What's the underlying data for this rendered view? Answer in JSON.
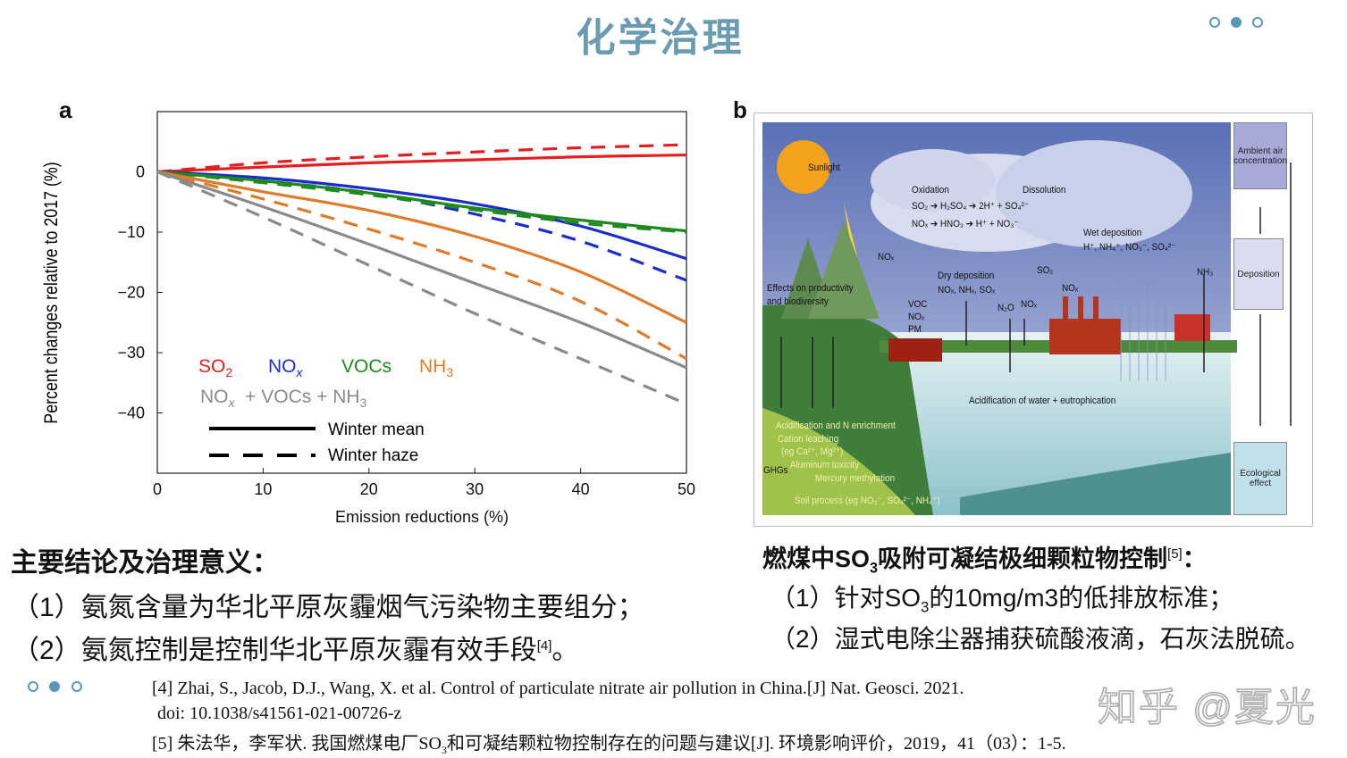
{
  "slide": {
    "title": "化学治理",
    "pager_dots": [
      false,
      true,
      false
    ],
    "footer_dots": [
      false,
      true,
      false
    ]
  },
  "panel_a": {
    "label": "a"
  },
  "panel_b": {
    "label": "b",
    "labels": {
      "sunlight": "Sunlight",
      "oxidation": "Oxidation",
      "dissolution": "Dissolution",
      "so2_reaction": "SO₂ ➔ H₂SO₄ ➔ 2H⁺ + SO₄²⁻",
      "nox_reaction": "NOₓ ➔ HNO₃ ➔ H⁺ + NO₃⁻",
      "wet_deposition": "Wet deposition",
      "wet_species": "H⁺, NH₄⁺, NO₃⁻, SO₄²⁻",
      "nox_lightning": "NOₓ",
      "dry_deposition": "Dry deposition",
      "dry_species": "NOₓ, NHₓ, SOₓ",
      "so2_stack": "SO₂",
      "nox_stack": "NOₓ",
      "nh3": "NH₃",
      "effects": "Effects on productivity",
      "effects2": "and biodiversity",
      "voc": "VOC",
      "voc_nox": "NOₓ",
      "voc_pm": "PM",
      "n2o": "N₂O",
      "nox_up": "NOₓ",
      "acid_water": "Acidification of water + eutrophication",
      "acid_n": "Acidification and N enrichment",
      "cation": "Cation leaching",
      "cation2": "(eg Ca²⁺, Mg²⁺)",
      "aluminum": "Aluminum toxicity",
      "mercury": "Mercury methylation",
      "ghgs": "GHGs",
      "soil": "Soil process (eg NO₃⁻, SO₄²⁻, NH₄⁺)"
    },
    "flow_boxes": [
      "Ambient air concentration",
      "Deposition",
      "Ecological effect"
    ]
  },
  "chart_data": {
    "type": "line",
    "xlabel": "Emission reductions (%)",
    "ylabel": "Percent changes relative to 2017 (%)",
    "xlim": [
      0,
      50
    ],
    "ylim": [
      -50,
      10
    ],
    "xticks": [
      0,
      10,
      20,
      30,
      40,
      50
    ],
    "yticks": [
      0,
      -10,
      -20,
      -30,
      -40
    ],
    "ytick_labels": [
      "0",
      "−10",
      "−20",
      "−30",
      "−40"
    ],
    "grid": false,
    "x": [
      0,
      10,
      20,
      30,
      40,
      50
    ],
    "legend_species": [
      {
        "base": "SO",
        "sub": "2",
        "color": "#e2201f"
      },
      {
        "base": "NO",
        "sub": "x",
        "color": "#1a2dc8"
      },
      {
        "base": "VOCs",
        "sub": "",
        "color": "#1e8a1e"
      },
      {
        "base": "NH",
        "sub": "3",
        "color": "#e07b2b"
      }
    ],
    "legend_combined": {
      "p1": "NO",
      "s1": "x",
      "p2": "  + VOCs + NH",
      "s2": "3",
      "color": "#8a8a8a"
    },
    "legend_styles": [
      {
        "label": "Winter mean",
        "dash": false
      },
      {
        "label": "Winter haze",
        "dash": true
      }
    ],
    "legend_placement": "bottom-left",
    "series": [
      {
        "species": "SO2",
        "style": "Winter mean",
        "color": "#e2201f",
        "values": [
          0,
          0.8,
          1.5,
          2.0,
          2.5,
          2.8
        ]
      },
      {
        "species": "SO2",
        "style": "Winter haze",
        "color": "#e2201f",
        "values": [
          0,
          1.5,
          2.5,
          3.3,
          4.0,
          4.5
        ]
      },
      {
        "species": "NOx",
        "style": "Winter mean",
        "color": "#1a2dc8",
        "values": [
          0,
          -1.0,
          -2.8,
          -5.3,
          -9.0,
          -14.4
        ]
      },
      {
        "species": "NOx",
        "style": "Winter haze",
        "color": "#1a2dc8",
        "values": [
          0,
          -1.5,
          -3.5,
          -7.0,
          -11.5,
          -18.0
        ]
      },
      {
        "species": "VOCs",
        "style": "Winter mean",
        "color": "#1e8a1e",
        "values": [
          0,
          -1.5,
          -3.5,
          -6.0,
          -8.0,
          -9.8
        ]
      },
      {
        "species": "VOCs",
        "style": "Winter haze",
        "color": "#1e8a1e",
        "values": [
          0,
          -1.8,
          -3.8,
          -6.3,
          -8.5,
          -10.0
        ]
      },
      {
        "species": "NH3",
        "style": "Winter mean",
        "color": "#e07b2b",
        "values": [
          0,
          -3.3,
          -6.4,
          -10.7,
          -16.6,
          -25.0
        ]
      },
      {
        "species": "NH3",
        "style": "Winter haze",
        "color": "#e07b2b",
        "values": [
          0,
          -4.5,
          -9.5,
          -15.0,
          -21.5,
          -31.0
        ]
      },
      {
        "species": "NOx + VOCs + NH3",
        "style": "Winter mean",
        "color": "#8a8a8a",
        "values": [
          0,
          -5.8,
          -12.0,
          -18.5,
          -25.0,
          -32.5
        ]
      },
      {
        "species": "NOx + VOCs + NH3",
        "style": "Winter haze",
        "color": "#8a8a8a",
        "values": [
          0,
          -7.5,
          -15.5,
          -23.5,
          -31.0,
          -38.5
        ]
      }
    ]
  },
  "conclusions": {
    "heading": "主要结论及治理意义：",
    "item1": "（1）氨氮含量为华北平原灰霾烟气污染物主要组分；",
    "item2": "（2）氨氮控制是控制华北平原灰霾有效手段",
    "item2_ref": "[4]",
    "item2_end": "。"
  },
  "so3": {
    "heading_a": "燃煤中SO",
    "heading_sub": "3",
    "heading_b": "吸附可凝结极细颗粒物控制",
    "heading_ref": "[5]",
    "heading_end": "：",
    "item1_a": "（1）针对SO",
    "item1_sub": "3",
    "item1_b": "的10mg/m3的低排放标准；",
    "item2": "（2）湿式电除尘器捕获硫酸液滴，石灰法脱硫。"
  },
  "references": {
    "ref4_line1": "[4] Zhai, S., Jacob, D.J., Wang, X. et al. Control of particulate nitrate air pollution in China.[J] Nat. Geosci.  2021.",
    "ref4_line2": "doi: 10.1038/s41561-021-00726-z",
    "ref5_a": "[5] 朱法华，李军状. 我国燃煤电厂SO",
    "ref5_sub": "3",
    "ref5_b": "和可凝结颗粒物控制存在的问题与建议[J]. 环境影响评价，2019，41（03）：1-5."
  },
  "watermark": "知乎 @夏光"
}
